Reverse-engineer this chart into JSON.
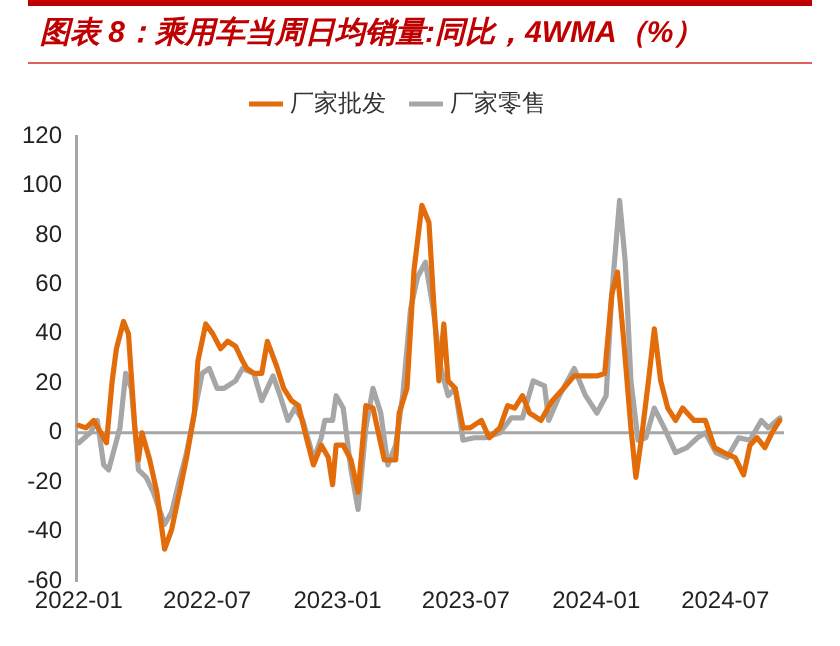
{
  "chart_data": {
    "type": "line",
    "title": "图表 8：乘用车当周日均销量:同比，4WMA（%）",
    "legend": "top",
    "grid": false,
    "marker": "none",
    "line_style": "solid",
    "xlim": [
      "2021-12-28",
      "2024-09-22"
    ],
    "xticks": [
      "2022-01",
      "2022-07",
      "2023-01",
      "2023-07",
      "2024-01",
      "2024-07"
    ],
    "ylim": [
      -60,
      120
    ],
    "yticks": [
      -60,
      -40,
      -20,
      0,
      20,
      40,
      60,
      80,
      100,
      120
    ],
    "ref_lines": [
      {
        "axis": "y",
        "value": 0,
        "label": null,
        "color": "#a6a6a6"
      }
    ],
    "series": [
      {
        "name": "厂家批发",
        "color": "#e36c0a",
        "x": [
          "2022-01-01",
          "2022-01-11",
          "2022-01-22",
          "2022-02-01",
          "2022-02-09",
          "2022-02-17",
          "2022-02-23",
          "2022-03-05",
          "2022-03-12",
          "2022-03-21",
          "2022-03-26",
          "2022-03-31",
          "2022-04-11",
          "2022-04-21",
          "2022-05-02",
          "2022-05-12",
          "2022-05-23",
          "2022-06-02",
          "2022-06-13",
          "2022-06-18",
          "2022-06-29",
          "2022-07-09",
          "2022-07-20",
          "2022-07-30",
          "2022-08-10",
          "2022-08-20",
          "2022-08-26",
          "2022-09-05",
          "2022-09-16",
          "2022-09-24",
          "2022-10-07",
          "2022-10-17",
          "2022-10-28",
          "2022-11-07",
          "2022-11-18",
          "2022-11-28",
          "2022-12-09",
          "2022-12-19",
          "2022-12-25",
          "2022-12-30",
          "2023-01-09",
          "2023-01-20",
          "2023-01-30",
          "2023-02-10",
          "2023-02-20",
          "2023-03-08",
          "2023-03-24",
          "2023-03-29",
          "2023-04-09",
          "2023-04-19",
          "2023-04-30",
          "2023-05-10",
          "2023-05-16",
          "2023-05-24",
          "2023-05-31",
          "2023-06-06",
          "2023-06-16",
          "2023-06-27",
          "2023-07-07",
          "2023-07-23",
          "2023-08-03",
          "2023-08-18",
          "2023-08-29",
          "2023-09-08",
          "2023-09-19",
          "2023-09-29",
          "2023-10-15",
          "2023-10-31",
          "2023-11-16",
          "2023-12-01",
          "2023-12-17",
          "2024-01-02",
          "2024-01-13",
          "2024-01-23",
          "2024-01-31",
          "2024-02-08",
          "2024-02-19",
          "2024-02-26",
          "2024-03-05",
          "2024-03-16",
          "2024-03-23",
          "2024-04-01",
          "2024-04-11",
          "2024-04-22",
          "2024-05-02",
          "2024-05-18",
          "2024-06-03",
          "2024-06-16",
          "2024-06-29",
          "2024-07-15",
          "2024-07-27",
          "2024-08-05",
          "2024-08-15",
          "2024-08-26",
          "2024-09-05",
          "2024-09-16"
        ],
        "values": [
          3,
          2,
          5,
          0,
          -4,
          21,
          34,
          45,
          40,
          2,
          -11,
          0,
          -11,
          -24,
          -47,
          -39,
          -24,
          -10,
          8,
          29,
          44,
          40,
          34,
          37,
          35,
          29,
          26,
          24,
          24,
          37,
          27,
          18,
          13,
          11,
          -2,
          -13,
          -5,
          -10,
          -21,
          -5,
          -5,
          -11,
          -24,
          11,
          10,
          -11,
          -11,
          8,
          18,
          66,
          92,
          85,
          56,
          21,
          44,
          21,
          18,
          2,
          2,
          5,
          -2,
          2,
          11,
          10,
          15,
          8,
          5,
          13,
          18,
          23,
          23,
          23,
          24,
          56,
          65,
          40,
          2,
          -18,
          -2,
          24,
          42,
          21,
          10,
          5,
          10,
          5,
          5,
          -6,
          -8,
          -10,
          -17,
          -5,
          -2,
          -6,
          0,
          5
        ]
      },
      {
        "name": "厂家零售",
        "color": "#a6a6a6",
        "x": [
          "2022-01-01",
          "2022-01-17",
          "2022-01-27",
          "2022-02-05",
          "2022-02-12",
          "2022-02-28",
          "2022-03-08",
          "2022-03-16",
          "2022-03-26",
          "2022-04-06",
          "2022-04-16",
          "2022-05-02",
          "2022-05-12",
          "2022-05-23",
          "2022-06-02",
          "2022-06-13",
          "2022-06-24",
          "2022-07-04",
          "2022-07-15",
          "2022-07-25",
          "2022-08-10",
          "2022-08-20",
          "2022-09-05",
          "2022-09-16",
          "2022-10-02",
          "2022-10-12",
          "2022-10-23",
          "2022-11-02",
          "2022-11-13",
          "2022-11-23",
          "2022-11-28",
          "2022-12-09",
          "2022-12-14",
          "2022-12-25",
          "2022-12-30",
          "2023-01-09",
          "2023-01-20",
          "2023-01-30",
          "2023-02-10",
          "2023-02-20",
          "2023-03-03",
          "2023-03-13",
          "2023-03-24",
          "2023-04-03",
          "2023-04-14",
          "2023-04-24",
          "2023-05-05",
          "2023-05-16",
          "2023-05-26",
          "2023-06-06",
          "2023-06-16",
          "2023-06-27",
          "2023-07-13",
          "2023-07-28",
          "2023-08-18",
          "2023-09-03",
          "2023-09-19",
          "2023-10-04",
          "2023-10-20",
          "2023-10-26",
          "2023-11-10",
          "2023-12-01",
          "2023-12-17",
          "2024-01-02",
          "2024-01-15",
          "2024-01-23",
          "2024-02-03",
          "2024-02-11",
          "2024-02-19",
          "2024-02-29",
          "2024-03-11",
          "2024-03-23",
          "2024-04-06",
          "2024-04-22",
          "2024-05-08",
          "2024-05-23",
          "2024-06-03",
          "2024-06-18",
          "2024-07-04",
          "2024-07-20",
          "2024-08-05",
          "2024-08-21",
          "2024-08-31",
          "2024-09-16"
        ],
        "values": [
          -4,
          0,
          5,
          -13,
          -15,
          2,
          24,
          18,
          -15,
          -18,
          -24,
          -37,
          -32,
          -19,
          -8,
          8,
          24,
          26,
          18,
          18,
          21,
          26,
          24,
          13,
          23,
          15,
          5,
          10,
          5,
          -5,
          -11,
          -2,
          5,
          5,
          15,
          10,
          -15,
          -31,
          2,
          18,
          8,
          -13,
          -5,
          15,
          50,
          63,
          69,
          50,
          27,
          15,
          18,
          -3,
          -2,
          -2,
          0,
          6,
          6,
          21,
          19,
          5,
          15,
          26,
          15,
          8,
          15,
          56,
          94,
          69,
          21,
          -3,
          -2,
          10,
          2,
          -8,
          -6,
          -2,
          0,
          -8,
          -10,
          -2,
          -3,
          5,
          2,
          6
        ]
      }
    ]
  }
}
